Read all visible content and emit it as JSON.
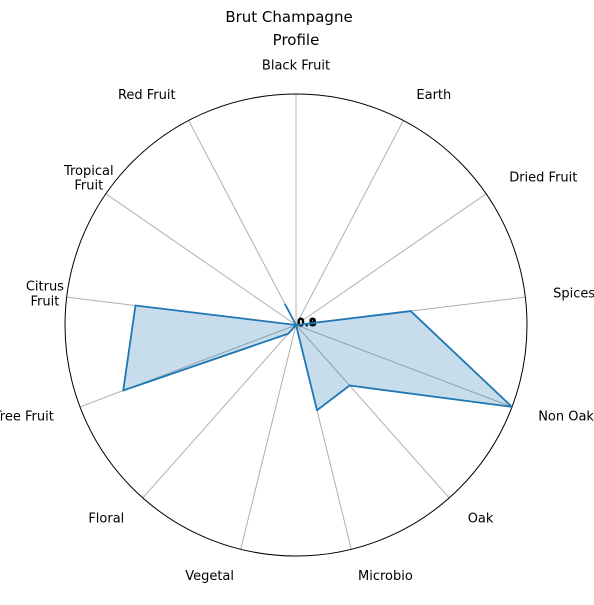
{
  "chart_data": {
    "type": "radar",
    "title_line1": "Brut Champagne",
    "title_line2": "Profile",
    "categories": [
      "Black Fruit",
      "Earth",
      "Dried Fruit",
      "Spices",
      "Non Oak",
      "Oak",
      "Microbio",
      "Vegetal",
      "Floral",
      "Tree Fruit",
      "Citrus Fruit",
      "Tropical Fruit",
      "Red Fruit"
    ],
    "series": [
      {
        "values": [
          0.0,
          0.0,
          0.0,
          0.5,
          1.0,
          0.35,
          0.38,
          0.0,
          0.05,
          0.8,
          0.7,
          0.0,
          0.1
        ]
      }
    ],
    "rlim": [
      0,
      1
    ],
    "r_tick_labels": [
      "0.0",
      "0.2",
      "0.4",
      "0.6",
      "0.8"
    ],
    "grid": true,
    "colors": {
      "line": "#1f77b4",
      "fill": "#1f77b4",
      "grid": "#b0b0b0",
      "frame": "#000000"
    }
  }
}
